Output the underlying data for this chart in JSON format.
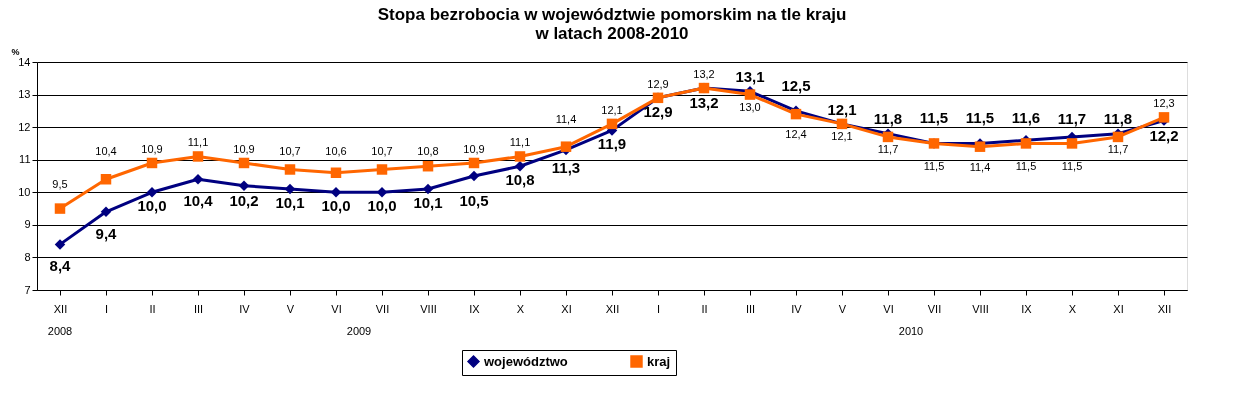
{
  "chart_data": {
    "type": "line",
    "title": "Stopa bezrobocia w województwie pomorskim na tle kraju\nw latach 2008-2010",
    "ylabel": "%",
    "categories": [
      "XII",
      "I",
      "II",
      "III",
      "IV",
      "V",
      "VI",
      "VII",
      "VIII",
      "IX",
      "X",
      "XI",
      "XII",
      "I",
      "II",
      "III",
      "IV",
      "V",
      "VI",
      "VII",
      "VIII",
      "IX",
      "X",
      "XI",
      "XII"
    ],
    "annotations": [
      "2008",
      "2009",
      "2010"
    ],
    "series": [
      {
        "name": "województwo",
        "color": "#000080",
        "marker": "diamond",
        "values": [
          8.4,
          9.4,
          10.0,
          10.4,
          10.2,
          10.1,
          10.0,
          10.0,
          10.1,
          10.5,
          10.8,
          11.3,
          11.9,
          12.9,
          13.2,
          13.1,
          12.5,
          12.1,
          11.8,
          11.5,
          11.5,
          11.6,
          11.7,
          11.8,
          12.2
        ],
        "value_labels": [
          "8,4",
          "9,4",
          "10,0",
          "10,4",
          "10,2",
          "10,1",
          "10,0",
          "10,0",
          "10,1",
          "10,5",
          "10,8",
          "11,3",
          "11,9",
          "12,9",
          "13,2",
          "13,1",
          "12,5",
          "12,1",
          "11,8",
          "11,5",
          "11,5",
          "11,6",
          "11,7",
          "11,8",
          "12,2"
        ]
      },
      {
        "name": "kraj",
        "color": "#ff6600",
        "marker": "square",
        "values": [
          9.5,
          10.4,
          10.9,
          11.1,
          10.9,
          10.7,
          10.6,
          10.7,
          10.8,
          10.9,
          11.1,
          11.4,
          12.1,
          12.9,
          13.2,
          13.0,
          12.4,
          12.1,
          11.7,
          11.5,
          11.4,
          11.5,
          11.5,
          11.7,
          12.3
        ],
        "value_labels": [
          "9,5",
          "10,4",
          "10,9",
          "11,1",
          "10,9",
          "10,7",
          "10,6",
          "10,7",
          "10,8",
          "10,9",
          "11,1",
          "11,4",
          "12,1",
          "12,9",
          "13,2",
          "13,0",
          "12,4",
          "12,1",
          "11,7",
          "11,5",
          "11,4",
          "11,5",
          "11,5",
          "11,7",
          "12,3"
        ]
      }
    ],
    "ylim": [
      7,
      14
    ],
    "yticks": [
      7,
      8,
      9,
      10,
      11,
      12,
      13,
      14
    ],
    "grid": "y",
    "legend": "bottom",
    "line_style": "solid"
  }
}
